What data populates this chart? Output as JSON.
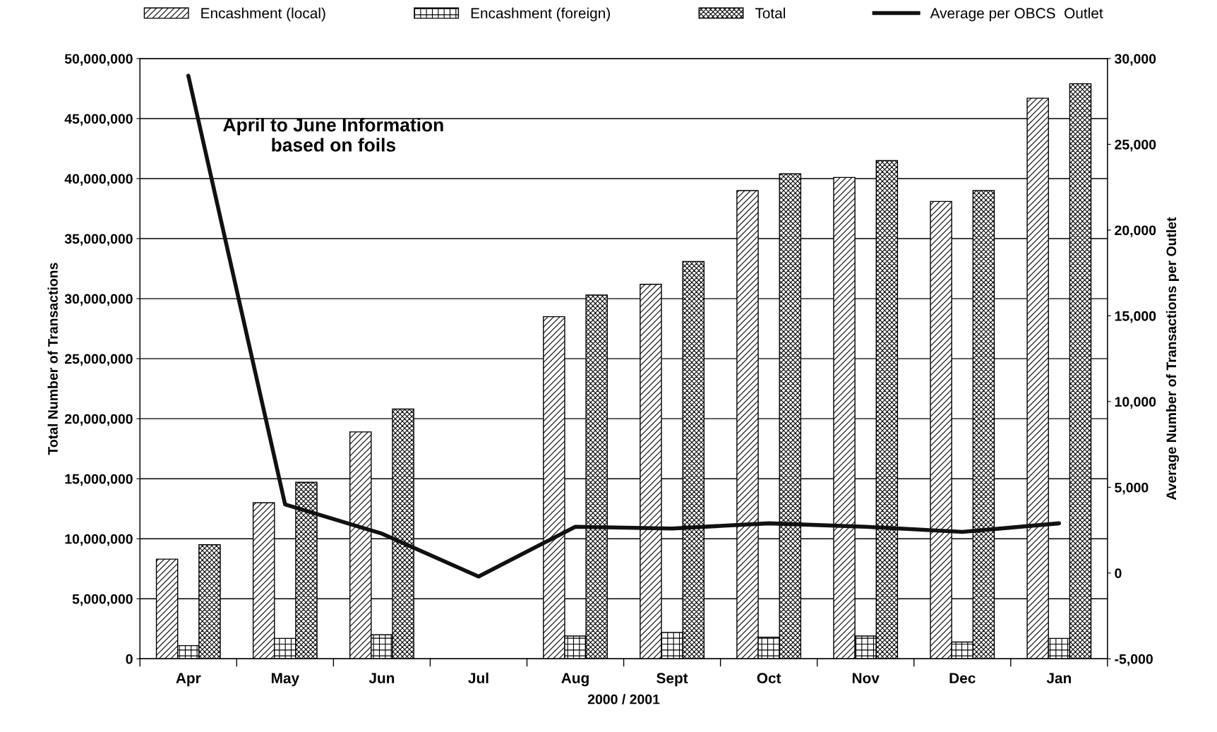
{
  "chart_data": {
    "type": "bar",
    "categories": [
      "Apr",
      "May",
      "Jun",
      "Jul",
      "Aug",
      "Sept",
      "Oct",
      "Nov",
      "Dec",
      "Jan"
    ],
    "series": [
      {
        "name": "Encashment (local)",
        "color": "#000000",
        "values": [
          8300000,
          13000000,
          18900000,
          null,
          28500000,
          31200000,
          39000000,
          40100000,
          38100000,
          46700000
        ]
      },
      {
        "name": "Encashment (foreign)",
        "color": "#000000",
        "values": [
          1100000,
          1700000,
          2000000,
          null,
          1900000,
          2200000,
          1800000,
          1900000,
          1400000,
          1700000
        ]
      },
      {
        "name": "Total",
        "color": "#000000",
        "values": [
          9500000,
          14700000,
          20800000,
          null,
          30300000,
          33100000,
          40400000,
          41500000,
          39000000,
          47900000
        ]
      },
      {
        "name": "Average per OBCS  Outlet",
        "type": "line",
        "axis": "y2",
        "color": "#111111",
        "values": [
          29000,
          4000,
          2300,
          -200,
          2700,
          2600,
          2900,
          2700,
          2400,
          2900
        ]
      }
    ],
    "xlabel": "2000 / 2001",
    "ylabel": "Total Number of Transactions",
    "y2label": "Average Number of Transactions per Outlet",
    "ylim": [
      0,
      50000000
    ],
    "yticks": [
      0,
      {
        "value": 5000000,
        "label": "5,000,000"
      },
      {
        "value": 10000000,
        "label": "10,000,000"
      },
      {
        "value": 15000000,
        "label": "15,000,000"
      },
      {
        "value": 20000000,
        "label": "20,000,000"
      },
      {
        "value": 25000000,
        "label": "25,000,000"
      },
      {
        "value": 30000000,
        "label": "30,000,000"
      },
      {
        "value": 35000000,
        "label": "35,000,000"
      },
      {
        "value": 40000000,
        "label": "40,000,000"
      },
      {
        "value": 45000000,
        "label": "45,000,000"
      },
      {
        "value": 50000000,
        "label": "50,000,000"
      }
    ],
    "y2lim": [
      -5000,
      30000
    ],
    "y2ticks": [
      {
        "value": -5000,
        "label": "-5,000"
      },
      0,
      {
        "value": 5000,
        "label": "5,000"
      },
      {
        "value": 10000,
        "label": "10,000"
      },
      {
        "value": 15000,
        "label": "15,000"
      },
      {
        "value": 20000,
        "label": "20,000"
      },
      {
        "value": 25000,
        "label": "25,000"
      },
      {
        "value": 30000,
        "label": "30,000"
      }
    ],
    "annotations": [
      "April to June Information\nbased on foils"
    ],
    "grid": "y",
    "legend": "top",
    "line_style": "solid"
  }
}
